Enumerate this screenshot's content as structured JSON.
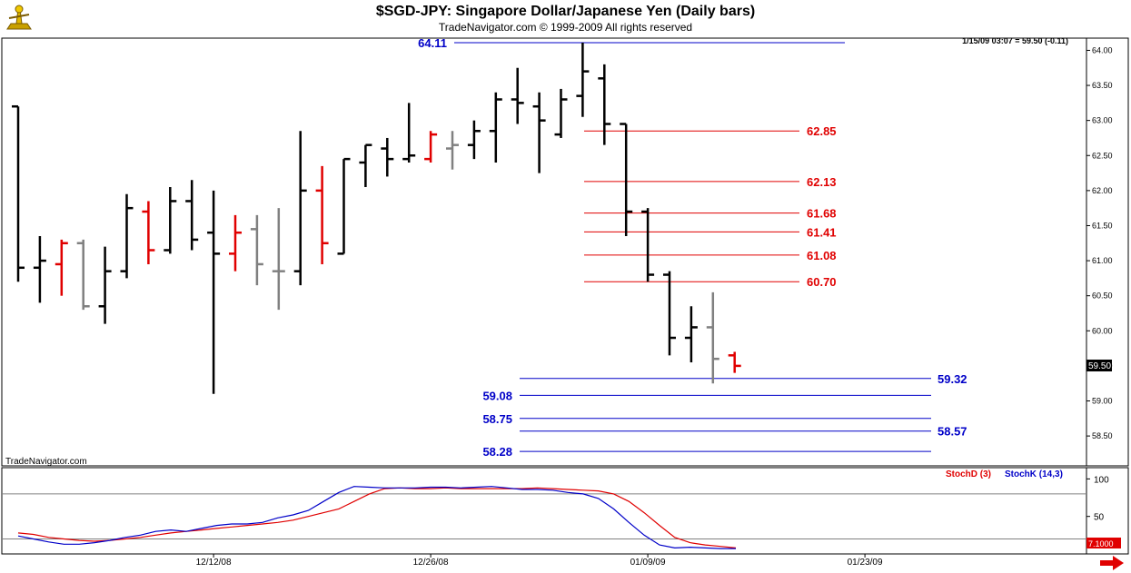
{
  "window": {
    "title": "$SGD-JPY:  Singapore Dollar/Japanese Yen  (Daily bars)",
    "copyright": "TradeNavigator.com © 1999-2009 All rights reserved",
    "watermark": "TradeNavigator.com",
    "quote_readout": "1/15/09 03:07 = 59.50 (-0.11)",
    "last_price_label": "59.50",
    "stoch_last_label": "7.1000",
    "logo_icon": "trade-navigator-logo-icon",
    "scroll_icon": "right-arrow-icon"
  },
  "chart_data": [
    {
      "type": "ohlc",
      "title": "$SGD-JPY:  Singapore Dollar/Japanese Yen  (Daily bars)",
      "y_range": [
        58.1,
        64.2
      ],
      "y_ticks": [
        "64.00",
        "63.50",
        "63.00",
        "62.50",
        "62.00",
        "61.50",
        "61.00",
        "60.50",
        "60.00",
        "59.50",
        "59.00",
        "58.50"
      ],
      "y_tick_values": [
        64.0,
        63.5,
        63.0,
        62.5,
        62.0,
        61.5,
        61.0,
        60.5,
        60.0,
        59.5,
        59.0,
        58.5
      ],
      "x_ticks": [
        "12/12/08",
        "12/26/08",
        "01/09/09",
        "01/23/09"
      ],
      "x_tick_bar_index": [
        9,
        19,
        29,
        39
      ],
      "bar_count": 41,
      "colors": {
        "up": "#000000",
        "red": "#e00000",
        "gray": "#808080",
        "fib": "#e00000",
        "support": "#0000c8"
      },
      "bars": [
        {
          "o": 63.2,
          "h": 63.2,
          "l": 60.7,
          "c": 60.9,
          "color": "black"
        },
        {
          "o": 60.9,
          "h": 61.35,
          "l": 60.4,
          "c": 61.0,
          "color": "black"
        },
        {
          "o": 60.95,
          "h": 61.3,
          "l": 60.5,
          "c": 61.25,
          "color": "red"
        },
        {
          "o": 61.25,
          "h": 61.3,
          "l": 60.3,
          "c": 60.35,
          "color": "gray"
        },
        {
          "o": 60.35,
          "h": 61.2,
          "l": 60.1,
          "c": 60.85,
          "color": "black"
        },
        {
          "o": 60.85,
          "h": 61.95,
          "l": 60.75,
          "c": 61.75,
          "color": "black"
        },
        {
          "o": 61.7,
          "h": 61.85,
          "l": 60.95,
          "c": 61.15,
          "color": "red"
        },
        {
          "o": 61.15,
          "h": 62.05,
          "l": 61.1,
          "c": 61.85,
          "color": "black"
        },
        {
          "o": 61.85,
          "h": 62.15,
          "l": 61.15,
          "c": 61.3,
          "color": "black"
        },
        {
          "o": 61.4,
          "h": 62.0,
          "l": 59.1,
          "c": 61.1,
          "color": "black"
        },
        {
          "o": 61.1,
          "h": 61.65,
          "l": 60.85,
          "c": 61.4,
          "color": "red"
        },
        {
          "o": 61.45,
          "h": 61.65,
          "l": 60.65,
          "c": 60.95,
          "color": "gray"
        },
        {
          "o": 60.85,
          "h": 61.75,
          "l": 60.3,
          "c": 60.85,
          "color": "gray"
        },
        {
          "o": 60.85,
          "h": 62.85,
          "l": 60.65,
          "c": 62.0,
          "color": "black"
        },
        {
          "o": 62.0,
          "h": 62.35,
          "l": 60.95,
          "c": 61.25,
          "color": "red"
        },
        {
          "o": 61.1,
          "h": 62.45,
          "l": 61.1,
          "c": 62.45,
          "color": "black"
        },
        {
          "o": 62.4,
          "h": 62.65,
          "l": 62.05,
          "c": 62.65,
          "color": "black"
        },
        {
          "o": 62.6,
          "h": 62.75,
          "l": 62.2,
          "c": 62.45,
          "color": "black"
        },
        {
          "o": 62.45,
          "h": 63.25,
          "l": 62.4,
          "c": 62.5,
          "color": "black"
        },
        {
          "o": 62.45,
          "h": 62.85,
          "l": 62.4,
          "c": 62.8,
          "color": "red"
        },
        {
          "o": 62.6,
          "h": 62.85,
          "l": 62.3,
          "c": 62.65,
          "color": "gray"
        },
        {
          "o": 62.65,
          "h": 63.0,
          "l": 62.45,
          "c": 62.85,
          "color": "black"
        },
        {
          "o": 62.85,
          "h": 63.4,
          "l": 62.4,
          "c": 63.3,
          "color": "black"
        },
        {
          "o": 63.3,
          "h": 63.75,
          "l": 62.95,
          "c": 63.25,
          "color": "black"
        },
        {
          "o": 63.2,
          "h": 63.4,
          "l": 62.25,
          "c": 63.0,
          "color": "black"
        },
        {
          "o": 62.8,
          "h": 63.45,
          "l": 62.75,
          "c": 63.3,
          "color": "black"
        },
        {
          "o": 63.35,
          "h": 64.11,
          "l": 63.05,
          "c": 63.7,
          "color": "black"
        },
        {
          "o": 63.6,
          "h": 63.8,
          "l": 62.65,
          "c": 62.95,
          "color": "black"
        },
        {
          "o": 62.95,
          "h": 62.95,
          "l": 61.35,
          "c": 61.7,
          "color": "black"
        },
        {
          "o": 61.7,
          "h": 61.75,
          "l": 60.7,
          "c": 60.8,
          "color": "black"
        },
        {
          "o": 60.8,
          "h": 60.85,
          "l": 59.65,
          "c": 59.9,
          "color": "black"
        },
        {
          "o": 59.9,
          "h": 60.35,
          "l": 59.55,
          "c": 60.05,
          "color": "black"
        },
        {
          "o": 60.05,
          "h": 60.55,
          "l": 59.25,
          "c": 59.6,
          "color": "gray"
        },
        {
          "o": 59.65,
          "h": 59.7,
          "l": 59.4,
          "c": 59.5,
          "color": "red"
        }
      ],
      "fib_levels": [
        {
          "value": 62.85,
          "label": "62.85"
        },
        {
          "value": 62.13,
          "label": "62.13"
        },
        {
          "value": 61.68,
          "label": "61.68"
        },
        {
          "value": 61.41,
          "label": "61.41"
        },
        {
          "value": 61.08,
          "label": "61.08"
        },
        {
          "value": 60.7,
          "label": "60.70"
        }
      ],
      "support_levels": [
        {
          "value": 64.11,
          "label": "64.11",
          "label_side": "left"
        },
        {
          "value": 59.32,
          "label": "59.32",
          "label_side": "right"
        },
        {
          "value": 59.08,
          "label": "59.08",
          "label_side": "left"
        },
        {
          "value": 58.75,
          "label": "58.75",
          "label_side": "left"
        },
        {
          "value": 58.57,
          "label": "58.57",
          "label_side": "right"
        },
        {
          "value": 58.28,
          "label": "58.28",
          "label_side": "left"
        }
      ]
    },
    {
      "type": "line",
      "series": [
        {
          "name": "StochD (3)",
          "color": "#e00000",
          "values": [
            28,
            26,
            22,
            20,
            18,
            17,
            18,
            20,
            22,
            25,
            28,
            30,
            32,
            34,
            36,
            38,
            40,
            42,
            45,
            50,
            55,
            60,
            70,
            80,
            87,
            88,
            87,
            87,
            88,
            87,
            87,
            87,
            87,
            87,
            88,
            87,
            86,
            85,
            84,
            80,
            70,
            55,
            38,
            22,
            15,
            12,
            10,
            8
          ]
        },
        {
          "name": "StochK (14,3)",
          "color": "#0000c8",
          "values": [
            24,
            20,
            16,
            13,
            13,
            15,
            18,
            22,
            25,
            30,
            32,
            30,
            34,
            38,
            40,
            40,
            42,
            48,
            52,
            58,
            70,
            82,
            90,
            89,
            88,
            88,
            88,
            89,
            89,
            88,
            89,
            90,
            88,
            86,
            86,
            85,
            82,
            80,
            74,
            60,
            42,
            25,
            12,
            8,
            9,
            8,
            7.1,
            7.1
          ]
        }
      ],
      "y_ticks": [
        "100",
        "50"
      ],
      "y_tick_values": [
        100,
        50
      ],
      "y_range": [
        0,
        115
      ],
      "legend": [
        "StochD (3)",
        "StochK (14,3)"
      ],
      "reference_lines": [
        80,
        20
      ]
    }
  ]
}
